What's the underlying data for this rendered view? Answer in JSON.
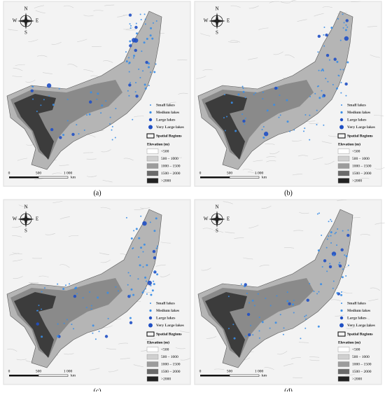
{
  "panels": [
    {
      "label": "(a)"
    },
    {
      "label": "(b)"
    },
    {
      "label": "(c)"
    },
    {
      "label": "(d)"
    }
  ],
  "compass": {
    "n": "N",
    "s": "S",
    "e": "E",
    "w": "W"
  },
  "legend": {
    "lakes": [
      "Small lakes",
      "Medium lakes",
      "Large lakes",
      "Very Large lakes"
    ],
    "regions": "Spatial Regions",
    "elevation_title": "Elevation (m)",
    "elevation_classes": [
      "<500",
      "500 – 1000",
      "1000 – 1500",
      "1500 – 2000",
      ">2000"
    ]
  },
  "scale_bar": {
    "ticks": [
      "0",
      "500",
      "1 000"
    ],
    "unit": "km"
  }
}
